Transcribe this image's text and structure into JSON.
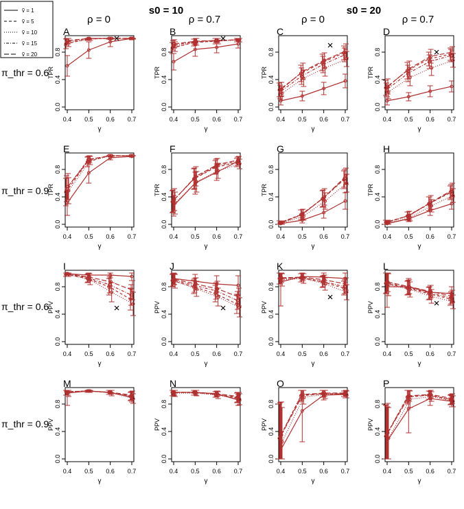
{
  "header": {
    "groups": [
      {
        "label": "s0 = 10",
        "sub": [
          "ρ = 0",
          "ρ = 0.7"
        ]
      },
      {
        "label": "s0 = 20",
        "sub": [
          "ρ = 0",
          "ρ = 0.7"
        ]
      }
    ]
  },
  "legend": {
    "entries": [
      {
        "label": "ṽ = 1",
        "dash": "solid"
      },
      {
        "label": "ṽ = 5",
        "dash": "dashed"
      },
      {
        "label": "ṽ = 10",
        "dash": "dotted"
      },
      {
        "label": "ṽ = 15",
        "dash": "dotdash"
      },
      {
        "label": "ṽ = 20",
        "dash": "longdash"
      }
    ]
  },
  "row_labels": [
    "π_thr = 0.6",
    "π_thr = 0.9",
    "π_thr = 0.6",
    "π_thr = 0.9"
  ],
  "colors": {
    "series": "#b03030",
    "axis": "#000000"
  },
  "chart_data": {
    "type": "line",
    "x": [
      0.4,
      0.5,
      0.6,
      0.7
    ],
    "xlabel": "γ",
    "xticks": [
      "0.4",
      "0.5",
      "0.6",
      "0.7"
    ],
    "yticks": [
      "0.0",
      "0.4",
      "0.8"
    ],
    "ylim": [
      0,
      1
    ],
    "series_names": [
      "ṽ = 1",
      "ṽ = 5",
      "ṽ = 10",
      "ṽ = 15",
      "ṽ = 20"
    ],
    "panels": [
      {
        "id": "A",
        "ylabel": "TPR",
        "marker": [
          0.63,
          1.0
        ],
        "series": [
          [
            0.6,
            0.83,
            0.95,
            1.0
          ],
          [
            0.92,
            0.99,
            1.0,
            1.0
          ],
          [
            0.94,
            0.99,
            1.0,
            1.0
          ],
          [
            0.95,
            1.0,
            1.0,
            1.0
          ],
          [
            0.97,
            1.0,
            1.0,
            1.0
          ]
        ],
        "err": [
          [
            0.15,
            0.12,
            0.07,
            0.02
          ],
          [
            0.07,
            0.02,
            0.01,
            0.01
          ],
          [
            0.06,
            0.02,
            0.01,
            0.01
          ],
          [
            0.05,
            0.01,
            0.01,
            0.01
          ],
          [
            0.05,
            0.01,
            0.01,
            0.01
          ]
        ]
      },
      {
        "id": "B",
        "ylabel": "TPR",
        "marker": [
          0.63,
          1.0
        ],
        "series": [
          [
            0.66,
            0.84,
            0.87,
            0.92
          ],
          [
            0.86,
            0.94,
            0.96,
            0.98
          ],
          [
            0.88,
            0.95,
            0.96,
            0.98
          ],
          [
            0.9,
            0.95,
            0.97,
            0.98
          ],
          [
            0.92,
            0.96,
            0.97,
            0.98
          ]
        ],
        "err": [
          [
            0.12,
            0.1,
            0.08,
            0.06
          ],
          [
            0.08,
            0.05,
            0.04,
            0.03
          ],
          [
            0.07,
            0.05,
            0.04,
            0.03
          ],
          [
            0.07,
            0.04,
            0.03,
            0.03
          ],
          [
            0.06,
            0.04,
            0.03,
            0.03
          ]
        ]
      },
      {
        "id": "C",
        "ylabel": "TPR",
        "marker": [
          0.63,
          0.9
        ],
        "series": [
          [
            0.09,
            0.16,
            0.27,
            0.38
          ],
          [
            0.25,
            0.49,
            0.65,
            0.79
          ],
          [
            0.2,
            0.42,
            0.57,
            0.7
          ],
          [
            0.22,
            0.45,
            0.62,
            0.76
          ],
          [
            0.26,
            0.52,
            0.68,
            0.82
          ]
        ],
        "err": [
          [
            0.06,
            0.07,
            0.09,
            0.1
          ],
          [
            0.1,
            0.12,
            0.12,
            0.1
          ],
          [
            0.1,
            0.12,
            0.12,
            0.11
          ],
          [
            0.1,
            0.12,
            0.12,
            0.1
          ],
          [
            0.1,
            0.12,
            0.11,
            0.1
          ]
        ]
      },
      {
        "id": "D",
        "ylabel": "TPR",
        "marker": [
          0.63,
          0.8
        ],
        "series": [
          [
            0.09,
            0.15,
            0.23,
            0.3
          ],
          [
            0.28,
            0.53,
            0.7,
            0.77
          ],
          [
            0.22,
            0.43,
            0.57,
            0.68
          ],
          [
            0.25,
            0.49,
            0.66,
            0.75
          ],
          [
            0.3,
            0.56,
            0.74,
            0.8
          ]
        ],
        "err": [
          [
            0.06,
            0.06,
            0.08,
            0.08
          ],
          [
            0.11,
            0.12,
            0.1,
            0.09
          ],
          [
            0.1,
            0.12,
            0.11,
            0.1
          ],
          [
            0.1,
            0.12,
            0.1,
            0.09
          ],
          [
            0.11,
            0.11,
            0.1,
            0.08
          ]
        ]
      },
      {
        "id": "E",
        "ylabel": "TPR",
        "series": [
          [
            0.31,
            0.75,
            0.97,
            0.99
          ],
          [
            0.47,
            0.91,
            1.0,
            1.0
          ],
          [
            0.49,
            0.93,
            1.0,
            1.0
          ],
          [
            0.52,
            0.94,
            1.0,
            1.0
          ],
          [
            0.55,
            0.95,
            1.0,
            1.0
          ]
        ],
        "err": [
          [
            0.18,
            0.15,
            0.03,
            0.01
          ],
          [
            0.2,
            0.07,
            0.01,
            0.0
          ],
          [
            0.19,
            0.06,
            0.01,
            0.0
          ],
          [
            0.19,
            0.05,
            0.01,
            0.0
          ],
          [
            0.19,
            0.05,
            0.01,
            0.0
          ]
        ]
      },
      {
        "id": "F",
        "ylabel": "TPR",
        "series": [
          [
            0.27,
            0.6,
            0.76,
            0.92
          ],
          [
            0.33,
            0.66,
            0.83,
            0.9
          ],
          [
            0.31,
            0.62,
            0.78,
            0.88
          ],
          [
            0.34,
            0.67,
            0.85,
            0.92
          ],
          [
            0.36,
            0.7,
            0.87,
            0.94
          ]
        ],
        "err": [
          [
            0.15,
            0.16,
            0.12,
            0.06
          ],
          [
            0.16,
            0.15,
            0.1,
            0.06
          ],
          [
            0.16,
            0.15,
            0.11,
            0.07
          ],
          [
            0.16,
            0.15,
            0.1,
            0.06
          ],
          [
            0.16,
            0.14,
            0.09,
            0.05
          ]
        ]
      },
      {
        "id": "G",
        "ylabel": "TPR",
        "series": [
          [
            0.01,
            0.06,
            0.17,
            0.34
          ],
          [
            0.02,
            0.14,
            0.37,
            0.65
          ],
          [
            0.02,
            0.12,
            0.34,
            0.6
          ],
          [
            0.02,
            0.14,
            0.38,
            0.67
          ],
          [
            0.02,
            0.15,
            0.4,
            0.7
          ]
        ],
        "err": [
          [
            0.02,
            0.04,
            0.08,
            0.12
          ],
          [
            0.03,
            0.07,
            0.12,
            0.13
          ],
          [
            0.03,
            0.06,
            0.12,
            0.13
          ],
          [
            0.03,
            0.07,
            0.12,
            0.13
          ],
          [
            0.03,
            0.07,
            0.12,
            0.12
          ]
        ]
      },
      {
        "id": "H",
        "ylabel": "TPR",
        "series": [
          [
            0.01,
            0.08,
            0.2,
            0.3
          ],
          [
            0.03,
            0.12,
            0.3,
            0.46
          ],
          [
            0.02,
            0.1,
            0.27,
            0.42
          ],
          [
            0.03,
            0.12,
            0.3,
            0.48
          ],
          [
            0.03,
            0.13,
            0.32,
            0.5
          ]
        ],
        "err": [
          [
            0.02,
            0.04,
            0.07,
            0.08
          ],
          [
            0.03,
            0.06,
            0.1,
            0.1
          ],
          [
            0.03,
            0.05,
            0.09,
            0.1
          ],
          [
            0.03,
            0.06,
            0.1,
            0.1
          ],
          [
            0.03,
            0.06,
            0.1,
            0.1
          ]
        ]
      },
      {
        "id": "I",
        "ylabel": "PPV",
        "marker": [
          0.63,
          0.49
        ],
        "series": [
          [
            0.99,
            0.97,
            0.97,
            0.95
          ],
          [
            0.98,
            0.92,
            0.8,
            0.62
          ],
          [
            0.98,
            0.9,
            0.72,
            0.55
          ],
          [
            0.99,
            0.93,
            0.83,
            0.68
          ],
          [
            0.99,
            0.94,
            0.87,
            0.75
          ]
        ],
        "err": [
          [
            0.02,
            0.03,
            0.04,
            0.06
          ],
          [
            0.03,
            0.06,
            0.12,
            0.16
          ],
          [
            0.03,
            0.07,
            0.14,
            0.17
          ],
          [
            0.02,
            0.06,
            0.12,
            0.15
          ],
          [
            0.02,
            0.05,
            0.1,
            0.14
          ]
        ]
      },
      {
        "id": "J",
        "ylabel": "PPV",
        "marker": [
          0.63,
          0.49
        ],
        "series": [
          [
            0.92,
            0.88,
            0.84,
            0.82
          ],
          [
            0.89,
            0.8,
            0.7,
            0.55
          ],
          [
            0.88,
            0.77,
            0.65,
            0.5
          ],
          [
            0.9,
            0.82,
            0.74,
            0.6
          ],
          [
            0.91,
            0.84,
            0.77,
            0.65
          ]
        ],
        "err": [
          [
            0.08,
            0.1,
            0.12,
            0.14
          ],
          [
            0.09,
            0.1,
            0.12,
            0.14
          ],
          [
            0.1,
            0.11,
            0.13,
            0.14
          ],
          [
            0.09,
            0.1,
            0.12,
            0.13
          ],
          [
            0.08,
            0.09,
            0.11,
            0.13
          ]
        ]
      },
      {
        "id": "K",
        "ylabel": "PPV",
        "marker": [
          0.63,
          0.65
        ],
        "series": [
          [
            0.87,
            0.95,
            0.94,
            0.92
          ],
          [
            0.92,
            0.93,
            0.87,
            0.78
          ],
          [
            0.9,
            0.92,
            0.84,
            0.72
          ],
          [
            0.92,
            0.93,
            0.88,
            0.8
          ],
          [
            0.93,
            0.94,
            0.9,
            0.84
          ]
        ],
        "err": [
          [
            0.35,
            0.06,
            0.07,
            0.1
          ],
          [
            0.08,
            0.06,
            0.08,
            0.1
          ],
          [
            0.09,
            0.07,
            0.09,
            0.11
          ],
          [
            0.08,
            0.06,
            0.08,
            0.1
          ],
          [
            0.07,
            0.05,
            0.07,
            0.09
          ]
        ]
      },
      {
        "id": "L",
        "ylabel": "PPV",
        "marker": [
          0.63,
          0.56
        ],
        "series": [
          [
            0.8,
            0.8,
            0.72,
            0.7
          ],
          [
            0.85,
            0.78,
            0.7,
            0.62
          ],
          [
            0.83,
            0.76,
            0.66,
            0.58
          ],
          [
            0.86,
            0.79,
            0.71,
            0.64
          ],
          [
            0.87,
            0.8,
            0.73,
            0.66
          ]
        ],
        "err": [
          [
            0.3,
            0.12,
            0.1,
            0.1
          ],
          [
            0.15,
            0.1,
            0.09,
            0.09
          ],
          [
            0.16,
            0.11,
            0.1,
            0.1
          ],
          [
            0.15,
            0.1,
            0.09,
            0.09
          ],
          [
            0.14,
            0.1,
            0.09,
            0.09
          ]
        ]
      },
      {
        "id": "M",
        "ylabel": "PPV",
        "series": [
          [
            0.96,
            0.99,
            0.97,
            0.9
          ],
          [
            0.98,
            0.99,
            0.97,
            0.91
          ],
          [
            0.97,
            0.99,
            0.96,
            0.88
          ],
          [
            0.98,
            0.99,
            0.97,
            0.92
          ],
          [
            0.98,
            0.99,
            0.97,
            0.93
          ]
        ],
        "err": [
          [
            0.18,
            0.02,
            0.03,
            0.07
          ],
          [
            0.05,
            0.02,
            0.03,
            0.06
          ],
          [
            0.06,
            0.02,
            0.04,
            0.07
          ],
          [
            0.05,
            0.02,
            0.03,
            0.06
          ],
          [
            0.05,
            0.02,
            0.03,
            0.06
          ]
        ]
      },
      {
        "id": "N",
        "ylabel": "PPV",
        "series": [
          [
            0.97,
            0.97,
            0.95,
            0.86
          ],
          [
            0.97,
            0.97,
            0.94,
            0.89
          ],
          [
            0.96,
            0.96,
            0.93,
            0.87
          ],
          [
            0.97,
            0.97,
            0.94,
            0.9
          ],
          [
            0.97,
            0.97,
            0.95,
            0.91
          ]
        ],
        "err": [
          [
            0.05,
            0.04,
            0.04,
            0.08
          ],
          [
            0.05,
            0.04,
            0.04,
            0.07
          ],
          [
            0.05,
            0.04,
            0.05,
            0.08
          ],
          [
            0.05,
            0.04,
            0.04,
            0.07
          ],
          [
            0.04,
            0.04,
            0.04,
            0.06
          ]
        ]
      },
      {
        "id": "O",
        "ylabel": "PPV",
        "series": [
          [
            0.13,
            0.7,
            0.93,
            0.94
          ],
          [
            0.3,
            0.92,
            0.95,
            0.95
          ],
          [
            0.25,
            0.9,
            0.94,
            0.94
          ],
          [
            0.32,
            0.93,
            0.95,
            0.95
          ],
          [
            0.35,
            0.94,
            0.96,
            0.96
          ]
        ],
        "err": [
          [
            0.7,
            0.45,
            0.07,
            0.05
          ],
          [
            0.5,
            0.08,
            0.05,
            0.04
          ],
          [
            0.5,
            0.1,
            0.06,
            0.05
          ],
          [
            0.5,
            0.07,
            0.05,
            0.04
          ],
          [
            0.48,
            0.06,
            0.05,
            0.04
          ]
        ]
      },
      {
        "id": "P",
        "ylabel": "PPV",
        "series": [
          [
            0.26,
            0.73,
            0.88,
            0.84
          ],
          [
            0.33,
            0.9,
            0.93,
            0.86
          ],
          [
            0.3,
            0.87,
            0.91,
            0.84
          ],
          [
            0.35,
            0.91,
            0.93,
            0.87
          ],
          [
            0.38,
            0.92,
            0.94,
            0.88
          ]
        ],
        "err": [
          [
            0.5,
            0.35,
            0.1,
            0.08
          ],
          [
            0.45,
            0.1,
            0.06,
            0.07
          ],
          [
            0.45,
            0.12,
            0.07,
            0.08
          ],
          [
            0.44,
            0.09,
            0.06,
            0.07
          ],
          [
            0.43,
            0.08,
            0.06,
            0.07
          ]
        ]
      }
    ]
  }
}
